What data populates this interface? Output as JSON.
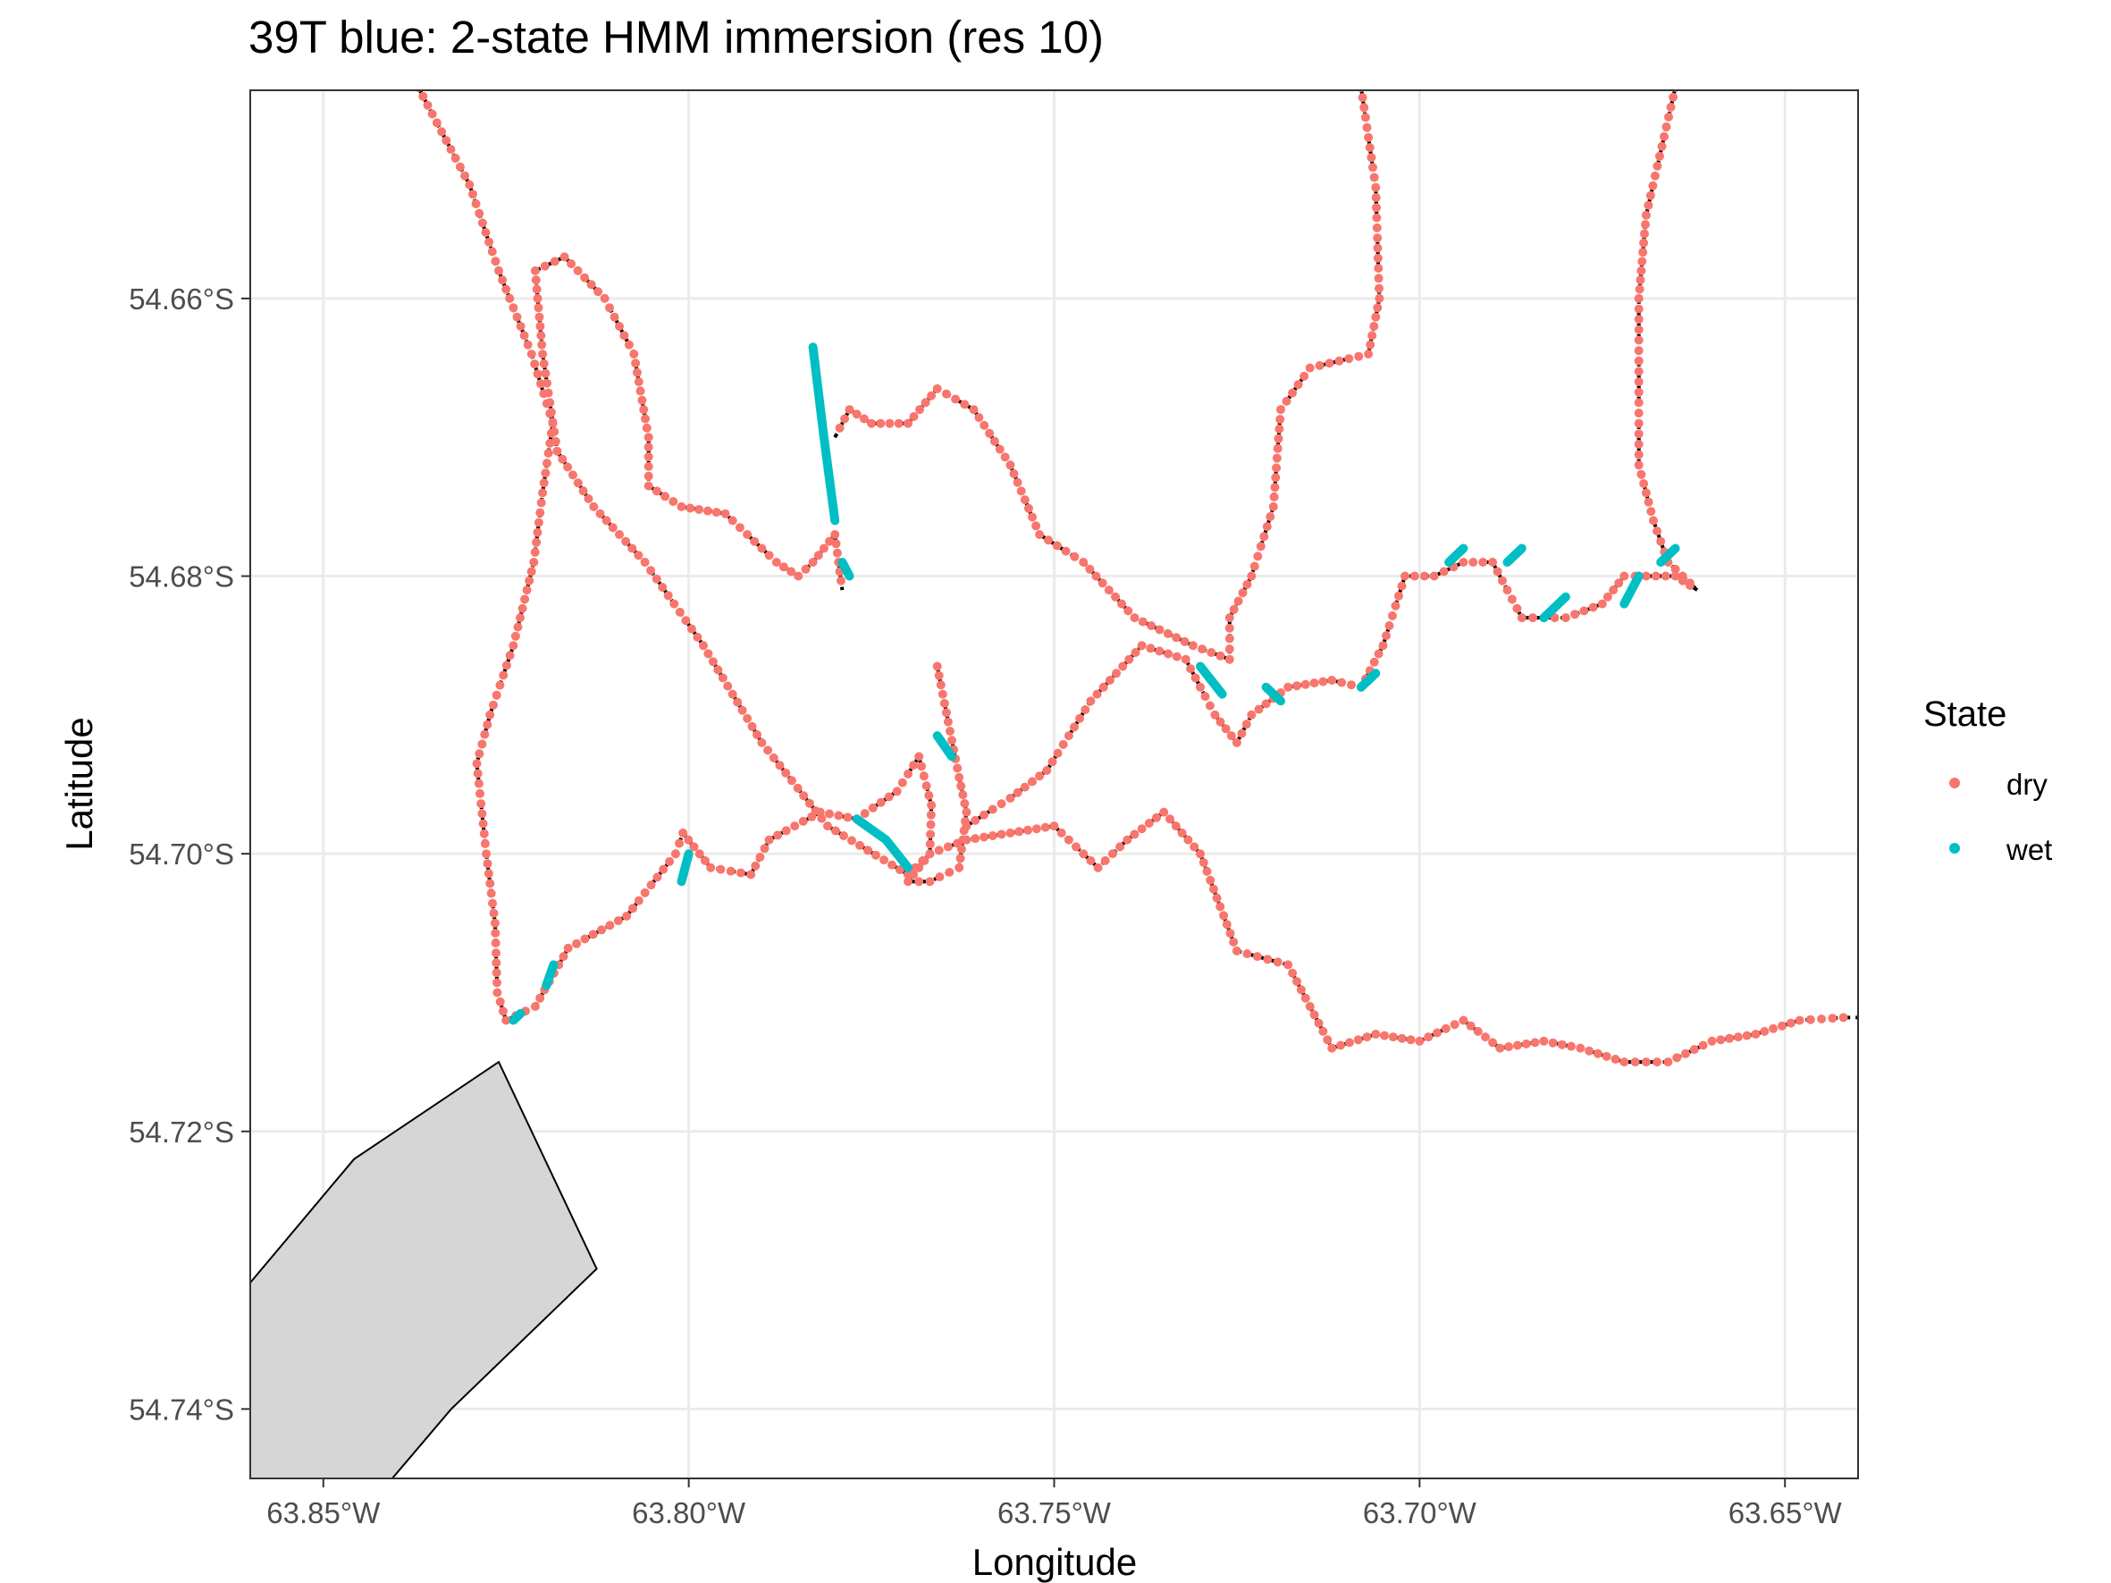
{
  "title": "39T blue: 2-state HMM immersion (res 10)",
  "colors": {
    "dry": "#F8766D",
    "wet": "#00BFC4",
    "track": "#000000",
    "land_fill": "#d6d6d6",
    "grid": "#ebebeb",
    "panel_border": "#333333"
  },
  "chart_data": {
    "type": "scatter",
    "xlabel": "Longitude",
    "ylabel": "Latitude",
    "xlim": [
      -63.86,
      -63.64
    ],
    "ylim": [
      -54.745,
      -54.645
    ],
    "x_ticks": [
      -63.85,
      -63.8,
      -63.75,
      -63.7,
      -63.65
    ],
    "x_tick_labels": [
      "63.85°W",
      "63.80°W",
      "63.75°W",
      "63.70°W",
      "63.65°W"
    ],
    "y_ticks": [
      -54.66,
      -54.68,
      -54.7,
      -54.72,
      -54.74
    ],
    "y_tick_labels": [
      "54.66°S",
      "54.68°S",
      "54.70°S",
      "54.72°S",
      "54.74°S"
    ],
    "grid": true,
    "legend": {
      "title": "State",
      "position": "right",
      "entries": [
        "dry",
        "wet"
      ]
    },
    "land_polygon": [
      [
        -63.86,
        -54.7309
      ],
      [
        -63.8458,
        -54.722
      ],
      [
        -63.826,
        -54.715
      ],
      [
        -63.8126,
        -54.7299
      ],
      [
        -63.8325,
        -54.74
      ],
      [
        -63.8417,
        -54.7457
      ],
      [
        -63.85,
        -54.75
      ],
      [
        -63.86,
        -54.75
      ]
    ],
    "track_segments": [
      {
        "name": "track-west-loop",
        "points": [
          [
            -63.837,
            -54.6448
          ],
          [
            -63.83,
            -54.6518
          ],
          [
            -63.826,
            -54.658
          ],
          [
            -63.8215,
            -54.664
          ],
          [
            -63.8186,
            -54.669
          ],
          [
            -63.82,
            -54.674
          ],
          [
            -63.8212,
            -54.679
          ],
          [
            -63.824,
            -54.685
          ],
          [
            -63.8272,
            -54.69
          ],
          [
            -63.829,
            -54.6935
          ],
          [
            -63.8277,
            -54.7
          ],
          [
            -63.8265,
            -54.705
          ],
          [
            -63.8262,
            -54.71
          ],
          [
            -63.825,
            -54.712
          ],
          [
            -63.821,
            -54.711
          ],
          [
            -63.8165,
            -54.7068
          ],
          [
            -63.8085,
            -54.7045
          ],
          [
            -63.8018,
            -54.7
          ],
          [
            -63.8008,
            -54.6985
          ],
          [
            -63.797,
            -54.701
          ],
          [
            -63.7915,
            -54.7015
          ],
          [
            -63.789,
            -54.699
          ],
          [
            -63.7855,
            -54.698
          ],
          [
            -63.782,
            -54.697
          ],
          [
            -63.777,
            -54.6975
          ],
          [
            -63.7715,
            -54.6955
          ],
          [
            -63.7685,
            -54.693
          ],
          [
            -63.7668,
            -54.6965
          ],
          [
            -63.767,
            -54.7
          ],
          [
            -63.77,
            -54.7015
          ],
          [
            -63.781,
            -54.698
          ],
          [
            -63.79,
            -54.692
          ],
          [
            -63.798,
            -54.685
          ],
          [
            -63.806,
            -54.679
          ],
          [
            -63.813,
            -54.675
          ],
          [
            -63.818,
            -54.671
          ],
          [
            -63.82,
            -54.664
          ],
          [
            -63.821,
            -54.658
          ],
          [
            -63.817,
            -54.657
          ],
          [
            -63.8115,
            -54.66
          ],
          [
            -63.8075,
            -54.664
          ],
          [
            -63.8055,
            -54.67
          ],
          [
            -63.8055,
            -54.6735
          ],
          [
            -63.801,
            -54.675
          ],
          [
            -63.795,
            -54.6755
          ],
          [
            -63.788,
            -54.679
          ],
          [
            -63.785,
            -54.68
          ],
          [
            -63.783,
            -54.679
          ],
          [
            -63.78,
            -54.677
          ],
          [
            -63.779,
            -54.681
          ]
        ]
      },
      {
        "name": "track-center-south",
        "points": [
          [
            -63.766,
            -54.6865
          ],
          [
            -63.763,
            -54.6945
          ],
          [
            -63.762,
            -54.697
          ],
          [
            -63.763,
            -54.701
          ],
          [
            -63.767,
            -54.702
          ],
          [
            -63.77,
            -54.702
          ],
          [
            -63.767,
            -54.7
          ],
          [
            -63.762,
            -54.699
          ],
          [
            -63.756,
            -54.6985
          ],
          [
            -63.75,
            -54.698
          ],
          [
            -63.744,
            -54.701
          ],
          [
            -63.74,
            -54.699
          ],
          [
            -63.735,
            -54.697
          ],
          [
            -63.73,
            -54.7
          ],
          [
            -63.725,
            -54.707
          ],
          [
            -63.718,
            -54.708
          ],
          [
            -63.712,
            -54.714
          ],
          [
            -63.706,
            -54.713
          ],
          [
            -63.7,
            -54.7135
          ],
          [
            -63.694,
            -54.712
          ],
          [
            -63.689,
            -54.714
          ],
          [
            -63.683,
            -54.7135
          ],
          [
            -63.678,
            -54.714
          ],
          [
            -63.672,
            -54.715
          ],
          [
            -63.666,
            -54.715
          ],
          [
            -63.66,
            -54.7135
          ],
          [
            -63.654,
            -54.713
          ],
          [
            -63.648,
            -54.712
          ],
          [
            -63.642,
            -54.7118
          ],
          [
            -63.64,
            -54.7118
          ]
        ]
      },
      {
        "name": "track-north-center",
        "points": [
          [
            -63.708,
            -54.6448
          ],
          [
            -63.706,
            -54.652
          ],
          [
            -63.7055,
            -54.66
          ],
          [
            -63.707,
            -54.664
          ],
          [
            -63.715,
            -54.665
          ],
          [
            -63.719,
            -54.668
          ],
          [
            -63.72,
            -54.675
          ],
          [
            -63.723,
            -54.68
          ],
          [
            -63.726,
            -54.683
          ],
          [
            -63.726,
            -54.686
          ],
          [
            -63.731,
            -54.685
          ],
          [
            -63.739,
            -54.683
          ],
          [
            -63.746,
            -54.679
          ],
          [
            -63.752,
            -54.677
          ],
          [
            -63.756,
            -54.672
          ],
          [
            -63.761,
            -54.668
          ],
          [
            -63.766,
            -54.6665
          ],
          [
            -63.77,
            -54.669
          ],
          [
            -63.775,
            -54.669
          ],
          [
            -63.778,
            -54.668
          ],
          [
            -63.78,
            -54.67
          ]
        ]
      },
      {
        "name": "track-east-north",
        "points": [
          [
            -63.665,
            -54.6448
          ],
          [
            -63.669,
            -54.654
          ],
          [
            -63.67,
            -54.66
          ],
          [
            -63.67,
            -54.666
          ],
          [
            -63.67,
            -54.672
          ],
          [
            -63.668,
            -54.676
          ],
          [
            -63.666,
            -54.679
          ],
          [
            -63.662,
            -54.681
          ]
        ]
      },
      {
        "name": "track-center-east",
        "points": [
          [
            -63.762,
            -54.698
          ],
          [
            -63.756,
            -54.696
          ],
          [
            -63.751,
            -54.694
          ],
          [
            -63.745,
            -54.689
          ],
          [
            -63.738,
            -54.685
          ],
          [
            -63.732,
            -54.686
          ],
          [
            -63.728,
            -54.69
          ],
          [
            -63.725,
            -54.692
          ],
          [
            -63.723,
            -54.69
          ],
          [
            -63.718,
            -54.688
          ],
          [
            -63.712,
            -54.6875
          ],
          [
            -63.708,
            -54.688
          ],
          [
            -63.705,
            -54.685
          ],
          [
            -63.702,
            -54.68
          ],
          [
            -63.698,
            -54.68
          ],
          [
            -63.694,
            -54.679
          ],
          [
            -63.69,
            -54.679
          ],
          [
            -63.686,
            -54.683
          ],
          [
            -63.68,
            -54.683
          ],
          [
            -63.675,
            -54.682
          ],
          [
            -63.672,
            -54.68
          ],
          [
            -63.669,
            -54.68
          ],
          [
            -63.665,
            -54.68
          ],
          [
            -63.662,
            -54.681
          ]
        ]
      }
    ],
    "wet_segments": [
      {
        "name": "wet-north-strip",
        "points": [
          [
            -63.783,
            -54.6635
          ],
          [
            -63.7815,
            -54.67
          ],
          [
            -63.78,
            -54.676
          ]
        ]
      },
      {
        "name": "wet-center-diagonal",
        "points": [
          [
            -63.777,
            -54.6975
          ],
          [
            -63.773,
            -54.699
          ],
          [
            -63.77,
            -54.701
          ]
        ]
      },
      {
        "name": "wet-small-c1",
        "points": [
          [
            -63.766,
            -54.6915
          ],
          [
            -63.764,
            -54.693
          ]
        ]
      },
      {
        "name": "wet-small-c2",
        "points": [
          [
            -63.779,
            -54.679
          ],
          [
            -63.778,
            -54.68
          ]
        ]
      },
      {
        "name": "wet-loop-1",
        "points": [
          [
            -63.8,
            -54.7
          ],
          [
            -63.801,
            -54.702
          ]
        ]
      },
      {
        "name": "wet-loop-2",
        "points": [
          [
            -63.8185,
            -54.708
          ],
          [
            -63.8195,
            -54.7095
          ]
        ]
      },
      {
        "name": "wet-loop-3",
        "points": [
          [
            -63.823,
            -54.7115
          ],
          [
            -63.824,
            -54.712
          ]
        ]
      },
      {
        "name": "wet-east-1",
        "points": [
          [
            -63.73,
            -54.6865
          ],
          [
            -63.727,
            -54.6885
          ]
        ]
      },
      {
        "name": "wet-east-2",
        "points": [
          [
            -63.721,
            -54.688
          ],
          [
            -63.719,
            -54.689
          ]
        ]
      },
      {
        "name": "wet-east-3",
        "points": [
          [
            -63.708,
            -54.688
          ],
          [
            -63.706,
            -54.687
          ]
        ]
      },
      {
        "name": "wet-east-4",
        "points": [
          [
            -63.696,
            -54.679
          ],
          [
            -63.694,
            -54.678
          ]
        ]
      },
      {
        "name": "wet-east-5",
        "points": [
          [
            -63.683,
            -54.683
          ],
          [
            -63.68,
            -54.6815
          ]
        ]
      },
      {
        "name": "wet-east-6",
        "points": [
          [
            -63.672,
            -54.682
          ],
          [
            -63.67,
            -54.68
          ]
        ]
      },
      {
        "name": "wet-east-7",
        "points": [
          [
            -63.667,
            -54.679
          ],
          [
            -63.665,
            -54.678
          ]
        ]
      },
      {
        "name": "wet-east-8",
        "points": [
          [
            -63.688,
            -54.679
          ],
          [
            -63.686,
            -54.678
          ]
        ]
      }
    ]
  }
}
